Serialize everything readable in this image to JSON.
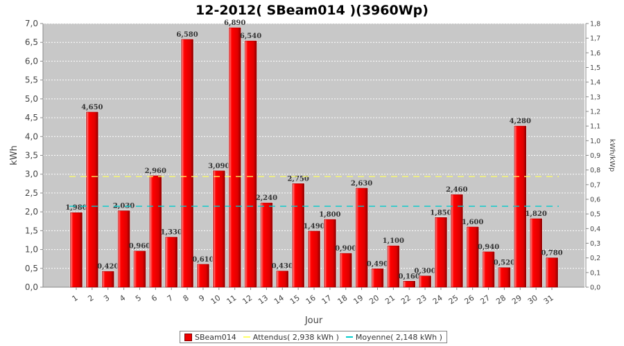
{
  "chart_data": {
    "type": "bar",
    "title": "12-2012( SBeam014 )(3960Wp)",
    "xlabel": "Jour",
    "ylabel": "kWh",
    "ylabel_right": "kWh/kWp",
    "categories": [
      "1",
      "2",
      "3",
      "4",
      "5",
      "6",
      "7",
      "8",
      "9",
      "10",
      "11",
      "12",
      "13",
      "14",
      "15",
      "16",
      "17",
      "18",
      "19",
      "20",
      "21",
      "22",
      "23",
      "24",
      "25",
      "26",
      "27",
      "28",
      "29",
      "30",
      "31"
    ],
    "series": [
      {
        "name": "SBeam014",
        "color": "#ee0000",
        "values": [
          1.98,
          4.65,
          0.42,
          2.03,
          0.96,
          2.96,
          1.33,
          6.58,
          0.61,
          3.09,
          6.89,
          6.54,
          2.24,
          0.43,
          2.75,
          1.49,
          1.8,
          0.9,
          2.63,
          0.49,
          1.1,
          0.16,
          0.3,
          1.85,
          2.46,
          1.6,
          0.94,
          0.52,
          4.28,
          1.82,
          0.78
        ],
        "labels": [
          "1,980",
          "4,650",
          "0,420",
          "2,030",
          "0,960",
          "2,960",
          "1,330",
          "6,580",
          "0,610",
          "3,090",
          "6,890",
          "6,540",
          "2,240",
          "0,430",
          "2,750",
          "1,490",
          "1,800",
          "0,900",
          "2,630",
          "0,490",
          "1,100",
          "0,160",
          "0,300",
          "1,850",
          "2,460",
          "1,600",
          "0,940",
          "0,520",
          "4,280",
          "1,820",
          "0,780"
        ]
      }
    ],
    "reference_lines": [
      {
        "name": "Attendus( 2,938 kWh )",
        "value": 2.938,
        "color": "#ffff66"
      },
      {
        "name": "Moyenne( 2,148 kWh )",
        "value": 2.148,
        "color": "#00cccc"
      }
    ],
    "ylim": [
      0,
      7.0
    ],
    "yticks": [
      "0,0",
      "0,5",
      "1,0",
      "1,5",
      "2,0",
      "2,5",
      "3,0",
      "3,5",
      "4,0",
      "4,5",
      "5,0",
      "5,5",
      "6,0",
      "6,5",
      "7,0"
    ],
    "ylim_right": [
      0,
      1.8
    ],
    "yticks_right": [
      "0,0",
      "0,1",
      "0,2",
      "0,3",
      "0,4",
      "0,5",
      "0,6",
      "0,7",
      "0,8",
      "0,9",
      "1,0",
      "1,1",
      "1,2",
      "1,3",
      "1,4",
      "1,5",
      "1,6",
      "1,7",
      "1,8"
    ],
    "grid": true,
    "legend_position": "bottom",
    "plot_background": "#c8c8c8"
  }
}
